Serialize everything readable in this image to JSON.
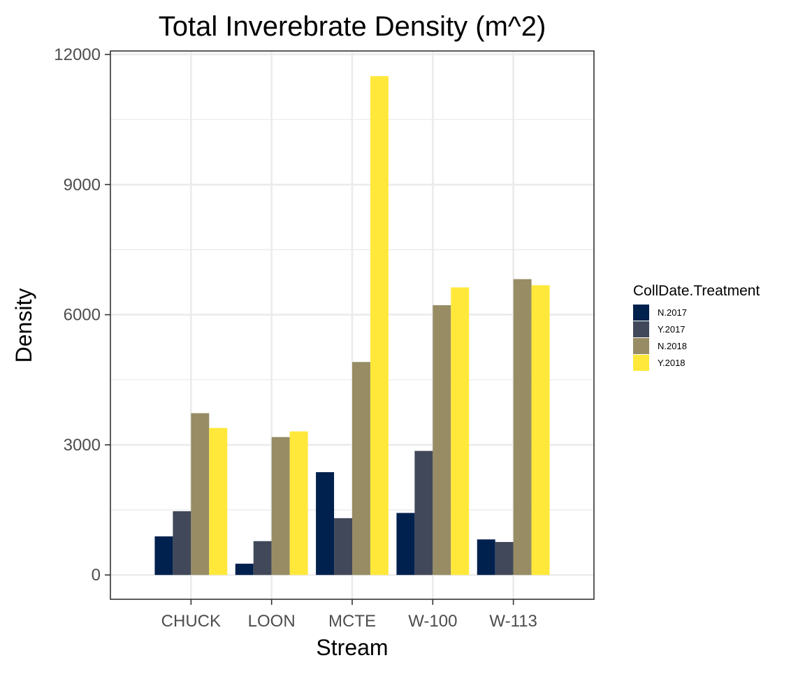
{
  "chart_data": {
    "type": "bar",
    "title": "Total Inverebrate Density (m^2)",
    "xlabel": "Stream",
    "ylabel": "Density",
    "categories": [
      "CHUCK",
      "LOON",
      "MCTE",
      "W-100",
      "W-113"
    ],
    "ylim": [
      -560,
      12080
    ],
    "yticks": [
      0,
      3000,
      6000,
      9000,
      12000
    ],
    "ytick_labels": [
      "0",
      "3000",
      "6000",
      "9000",
      "12000"
    ],
    "grid": true,
    "legend": {
      "title": "CollDate.Treatment",
      "position": "right"
    },
    "series": [
      {
        "name": "N.2017",
        "color": "#00204d",
        "values": [
          890,
          260,
          2370,
          1430,
          820
        ]
      },
      {
        "name": "Y.2017",
        "color": "#414859",
        "values": [
          1470,
          780,
          1310,
          2860,
          760
        ]
      },
      {
        "name": "N.2018",
        "color": "#978c64",
        "values": [
          3730,
          3180,
          4910,
          6220,
          6820
        ]
      },
      {
        "name": "Y.2018",
        "color": "#ffe83a",
        "values": [
          3390,
          3310,
          11500,
          6630,
          6680
        ]
      }
    ],
    "colors": {
      "panel_border": "#333333",
      "grid": "#ebebeb",
      "tick": "#333333"
    }
  }
}
